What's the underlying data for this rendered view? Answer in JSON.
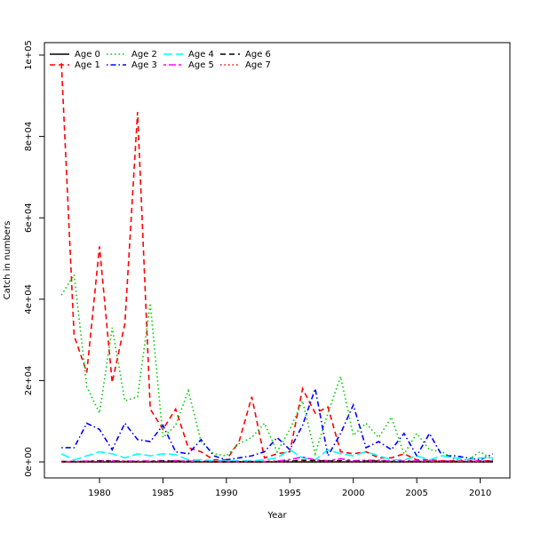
{
  "chart_data": {
    "type": "line",
    "x_label": "Year",
    "y_label": "Catch in numbers",
    "x": [
      1977,
      1978,
      1979,
      1980,
      1981,
      1982,
      1983,
      1984,
      1985,
      1986,
      1987,
      1988,
      1989,
      1990,
      1991,
      1992,
      1993,
      1994,
      1995,
      1996,
      1997,
      1998,
      1999,
      2000,
      2001,
      2002,
      2003,
      2004,
      2005,
      2006,
      2007,
      2008,
      2009,
      2010,
      2011
    ],
    "xlim": [
      1975.66,
      2012.34
    ],
    "xticks": [
      1980,
      1985,
      1990,
      1995,
      2000,
      2005,
      2010
    ],
    "ylim": [
      -3930,
      103060
    ],
    "yticks": [
      {
        "value": 0,
        "label": "0e+00"
      },
      {
        "value": 20000,
        "label": "2e+04"
      },
      {
        "value": 40000,
        "label": "4e+04"
      },
      {
        "value": 60000,
        "label": "6e+04"
      },
      {
        "value": 80000,
        "label": "8e+04"
      },
      {
        "value": 100000,
        "label": "1e+05"
      }
    ],
    "legend": "topleft",
    "series": [
      {
        "name": "Age 0",
        "color": "#000000",
        "dash": "solid",
        "values": [
          0,
          0,
          0,
          0,
          0,
          0,
          0,
          0,
          0,
          0,
          0,
          0,
          0,
          0,
          0,
          0,
          0,
          0,
          0,
          0,
          0,
          0,
          0,
          0,
          0,
          0,
          0,
          0,
          0,
          0,
          0,
          0,
          0,
          0,
          0
        ]
      },
      {
        "name": "Age 1",
        "color": "#ff0000",
        "dash": "dashed",
        "values": [
          98000,
          31000,
          22000,
          53000,
          19500,
          34000,
          86000,
          13000,
          8000,
          13000,
          3500,
          2500,
          500,
          500,
          5000,
          16000,
          1000,
          2000,
          2500,
          18000,
          12000,
          13500,
          2500,
          2000,
          2500,
          1000,
          1000,
          2000,
          500,
          500,
          300,
          300,
          300,
          300,
          300
        ]
      },
      {
        "name": "Age 2",
        "color": "#00cd00",
        "dash": "dotted",
        "values": [
          41000,
          46000,
          18500,
          12000,
          33000,
          15000,
          16000,
          39000,
          6000,
          9000,
          17500,
          5000,
          2000,
          1500,
          4500,
          6000,
          9500,
          2500,
          8000,
          15000,
          2000,
          12000,
          21000,
          6500,
          9500,
          6000,
          11000,
          2000,
          7000,
          3000,
          2500,
          500,
          500,
          2500,
          500
        ]
      },
      {
        "name": "Age 3",
        "color": "#0000ff",
        "dash": "dotdash",
        "values": [
          3500,
          3500,
          9500,
          8000,
          3000,
          9500,
          5500,
          5000,
          9000,
          2500,
          2000,
          5500,
          1500,
          500,
          1000,
          1500,
          2500,
          6000,
          3000,
          9000,
          18000,
          1500,
          7000,
          14000,
          3500,
          5000,
          3000,
          7000,
          1500,
          7000,
          1500,
          1500,
          1000,
          500,
          2000
        ]
      },
      {
        "name": "Age 4",
        "color": "#00ffff",
        "dash": "longdash",
        "values": [
          2000,
          500,
          1500,
          2500,
          2000,
          1000,
          2000,
          1500,
          2000,
          1800,
          500,
          500,
          300,
          300,
          300,
          300,
          500,
          1000,
          3000,
          1000,
          500,
          3000,
          2000,
          1500,
          2500,
          1500,
          500,
          500,
          1500,
          500,
          1500,
          1000,
          500,
          1000,
          1000
        ]
      },
      {
        "name": "Age 5",
        "color": "#ff00ff",
        "dash": "twodash",
        "values": [
          100,
          100,
          200,
          300,
          300,
          200,
          200,
          200,
          300,
          300,
          200,
          100,
          100,
          100,
          100,
          100,
          100,
          200,
          600,
          1200,
          500,
          300,
          800,
          300,
          400,
          400,
          200,
          200,
          300,
          200,
          200,
          200,
          100,
          200,
          200
        ]
      },
      {
        "name": "Age 6",
        "color": "#000000",
        "dash": "dashed",
        "values": [
          100,
          100,
          100,
          200,
          200,
          100,
          100,
          100,
          200,
          200,
          100,
          100,
          50,
          50,
          50,
          50,
          50,
          100,
          200,
          400,
          300,
          200,
          300,
          100,
          200,
          200,
          100,
          100,
          100,
          100,
          100,
          100,
          50,
          100,
          100
        ]
      },
      {
        "name": "Age 7",
        "color": "#ff0000",
        "dash": "dotted",
        "values": [
          50,
          50,
          50,
          100,
          100,
          50,
          50,
          50,
          100,
          100,
          50,
          50,
          20,
          20,
          20,
          20,
          20,
          50,
          100,
          200,
          150,
          100,
          150,
          50,
          100,
          100,
          50,
          50,
          50,
          50,
          50,
          50,
          20,
          50,
          50
        ]
      }
    ]
  }
}
